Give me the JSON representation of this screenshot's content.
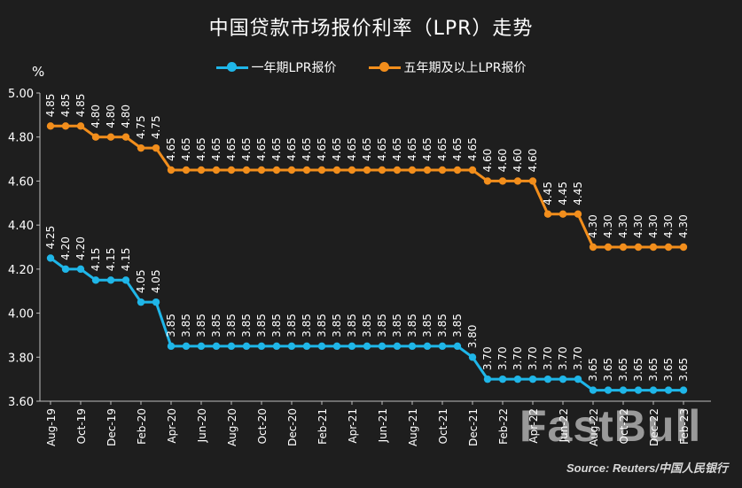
{
  "chart_data": {
    "type": "line",
    "title": "中国贷款市场报价利率（LPR）走势",
    "ylabel": "%",
    "ylim": [
      3.6,
      5.0
    ],
    "yticks": [
      "3.60",
      "3.80",
      "4.00",
      "4.20",
      "4.40",
      "4.60",
      "4.80",
      "5.00"
    ],
    "ytick_values": [
      3.6,
      3.8,
      4.0,
      4.2,
      4.4,
      4.6,
      4.8,
      5.0
    ],
    "x": [
      "Aug-19",
      "Sep-19",
      "Oct-19",
      "Nov-19",
      "Dec-19",
      "Jan-20",
      "Feb-20",
      "Mar-20",
      "Apr-20",
      "May-20",
      "Jun-20",
      "Jul-20",
      "Aug-20",
      "Sep-20",
      "Oct-20",
      "Nov-20",
      "Dec-20",
      "Jan-21",
      "Feb-21",
      "Mar-21",
      "Apr-21",
      "May-21",
      "Jun-21",
      "Jul-21",
      "Aug-21",
      "Sep-21",
      "Oct-21",
      "Nov-21",
      "Dec-21",
      "Jan-22",
      "Feb-22",
      "Mar-22",
      "Apr-22",
      "May-22",
      "Jun-22",
      "Jul-22",
      "Aug-22",
      "Sep-22",
      "Oct-22",
      "Nov-22",
      "Dec-22",
      "Jan-23",
      "Feb-23"
    ],
    "xticks": [
      "Aug-19",
      "Oct-19",
      "Dec-19",
      "Feb-20",
      "Apr-20",
      "Jun-20",
      "Aug-20",
      "Oct-20",
      "Dec-20",
      "Feb-21",
      "Apr-21",
      "Jun-21",
      "Aug-21",
      "Oct-21",
      "Dec-21",
      "Feb-22",
      "Apr-22",
      "Jun-22",
      "Aug-22",
      "Oct-22",
      "Dec-22",
      "Feb-23"
    ],
    "series": [
      {
        "name": "一年期LPR报价",
        "color": "#1fb6e8",
        "values": [
          4.25,
          4.2,
          4.2,
          4.15,
          4.15,
          4.15,
          4.05,
          4.05,
          3.85,
          3.85,
          3.85,
          3.85,
          3.85,
          3.85,
          3.85,
          3.85,
          3.85,
          3.85,
          3.85,
          3.85,
          3.85,
          3.85,
          3.85,
          3.85,
          3.85,
          3.85,
          3.85,
          3.85,
          3.8,
          3.7,
          3.7,
          3.7,
          3.7,
          3.7,
          3.7,
          3.7,
          3.65,
          3.65,
          3.65,
          3.65,
          3.65,
          3.65,
          3.65
        ],
        "labels": [
          "4.25",
          "4.20",
          "4.20",
          "4.15",
          "4.15",
          "4.15",
          "4.05",
          "4.05",
          "3.85",
          "3.85",
          "3.85",
          "3.85",
          "3.85",
          "3.85",
          "3.85",
          "3.85",
          "3.85",
          "3.85",
          "3.85",
          "3.85",
          "3.85",
          "3.85",
          "3.85",
          "3.85",
          "3.85",
          "3.85",
          "3.85",
          "3.85",
          "3.80",
          "3.70",
          "3.70",
          "3.70",
          "3.70",
          "3.70",
          "3.70",
          "3.70",
          "3.65",
          "3.65",
          "3.65",
          "3.65",
          "3.65",
          "3.65",
          "3.65"
        ]
      },
      {
        "name": "五年期及以上LPR报价",
        "color": "#f28e1c",
        "values": [
          4.85,
          4.85,
          4.85,
          4.8,
          4.8,
          4.8,
          4.75,
          4.75,
          4.65,
          4.65,
          4.65,
          4.65,
          4.65,
          4.65,
          4.65,
          4.65,
          4.65,
          4.65,
          4.65,
          4.65,
          4.65,
          4.65,
          4.65,
          4.65,
          4.65,
          4.65,
          4.65,
          4.65,
          4.65,
          4.6,
          4.6,
          4.6,
          4.6,
          4.45,
          4.45,
          4.45,
          4.3,
          4.3,
          4.3,
          4.3,
          4.3,
          4.3,
          4.3
        ],
        "labels": [
          "4.85",
          "4.85",
          "4.85",
          "4.80",
          "4.80",
          "4.80",
          "4.75",
          "4.75",
          "4.65",
          "4.65",
          "4.65",
          "4.65",
          "4.65",
          "4.65",
          "4.65",
          "4.65",
          "4.65",
          "4.65",
          "4.65",
          "4.65",
          "4.65",
          "4.65",
          "4.65",
          "4.65",
          "4.65",
          "4.65",
          "4.65",
          "4.65",
          "4.65",
          "4.60",
          "4.60",
          "4.60",
          "4.60",
          "4.45",
          "4.45",
          "4.45",
          "4.30",
          "4.30",
          "4.30",
          "4.30",
          "4.30",
          "4.30",
          "4.30"
        ]
      }
    ],
    "grid": false,
    "legend_position": "top-center",
    "background_color": "#1e1e1e"
  },
  "source": "Source: Reuters/中国人民银行",
  "watermark": "FastBull"
}
